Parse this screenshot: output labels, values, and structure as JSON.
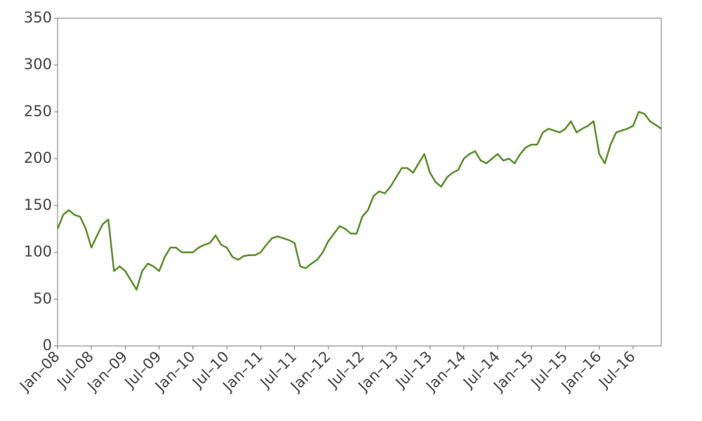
{
  "chart_data": {
    "type": "line",
    "x": [
      "2008-01",
      "2008-02",
      "2008-03",
      "2008-04",
      "2008-05",
      "2008-06",
      "2008-07",
      "2008-08",
      "2008-09",
      "2008-10",
      "2008-11",
      "2008-12",
      "2009-01",
      "2009-02",
      "2009-03",
      "2009-04",
      "2009-05",
      "2009-06",
      "2009-07",
      "2009-08",
      "2009-09",
      "2009-10",
      "2009-11",
      "2009-12",
      "2010-01",
      "2010-02",
      "2010-03",
      "2010-04",
      "2010-05",
      "2010-06",
      "2010-07",
      "2010-08",
      "2010-09",
      "2010-10",
      "2010-11",
      "2010-12",
      "2011-01",
      "2011-02",
      "2011-03",
      "2011-04",
      "2011-05",
      "2011-06",
      "2011-07",
      "2011-08",
      "2011-09",
      "2011-10",
      "2011-11",
      "2011-12",
      "2012-01",
      "2012-02",
      "2012-03",
      "2012-04",
      "2012-05",
      "2012-06",
      "2012-07",
      "2012-08",
      "2012-09",
      "2012-10",
      "2012-11",
      "2012-12",
      "2013-01",
      "2013-02",
      "2013-03",
      "2013-04",
      "2013-05",
      "2013-06",
      "2013-07",
      "2013-08",
      "2013-09",
      "2013-10",
      "2013-11",
      "2013-12",
      "2014-01",
      "2014-02",
      "2014-03",
      "2014-04",
      "2014-05",
      "2014-06",
      "2014-07",
      "2014-08",
      "2014-09",
      "2014-10",
      "2014-11",
      "2014-12",
      "2015-01",
      "2015-02",
      "2015-03",
      "2015-04",
      "2015-05",
      "2015-06",
      "2015-07",
      "2015-08",
      "2015-09",
      "2015-10",
      "2015-11",
      "2015-12",
      "2016-01",
      "2016-02",
      "2016-03",
      "2016-04",
      "2016-05",
      "2016-06",
      "2016-07",
      "2016-08",
      "2016-09",
      "2016-10",
      "2016-11",
      "2016-12"
    ],
    "series": [
      {
        "color": "#5a8f29",
        "values": [
          125,
          140,
          145,
          140,
          138,
          125,
          105,
          118,
          130,
          135,
          80,
          85,
          80,
          70,
          60,
          80,
          88,
          85,
          80,
          95,
          105,
          105,
          100,
          100,
          100,
          105,
          108,
          110,
          118,
          108,
          105,
          95,
          92,
          96,
          97,
          97,
          100,
          108,
          115,
          117,
          115,
          113,
          110,
          85,
          83,
          88,
          92,
          100,
          112,
          120,
          128,
          125,
          120,
          120,
          138,
          145,
          160,
          165,
          163,
          170,
          180,
          190,
          190,
          185,
          195,
          205,
          185,
          175,
          170,
          180,
          185,
          188,
          200,
          205,
          208,
          198,
          195,
          200,
          205,
          198,
          200,
          195,
          205,
          212,
          215,
          215,
          228,
          232,
          230,
          228,
          232,
          240,
          228,
          232,
          235,
          240,
          205,
          195,
          215,
          228,
          230,
          232,
          235,
          250,
          248,
          240,
          236,
          232
        ]
      }
    ],
    "xlim": [
      "2008-01",
      "2016-12"
    ],
    "xticks": [
      {
        "value": "2008-01",
        "label": "Jan–08"
      },
      {
        "value": "2008-07",
        "label": "Jul–08"
      },
      {
        "value": "2009-01",
        "label": "Jan–09"
      },
      {
        "value": "2009-07",
        "label": "Jul–09"
      },
      {
        "value": "2010-01",
        "label": "Jan–10"
      },
      {
        "value": "2010-07",
        "label": "Jul–10"
      },
      {
        "value": "2011-01",
        "label": "Jan–11"
      },
      {
        "value": "2011-07",
        "label": "Jul–11"
      },
      {
        "value": "2012-01",
        "label": "Jan–12"
      },
      {
        "value": "2012-07",
        "label": "Jul–12"
      },
      {
        "value": "2013-01",
        "label": "Jan–13"
      },
      {
        "value": "2013-07",
        "label": "Jul–13"
      },
      {
        "value": "2014-01",
        "label": "Jan–14"
      },
      {
        "value": "2014-07",
        "label": "Jul–14"
      },
      {
        "value": "2015-01",
        "label": "Jan–15"
      },
      {
        "value": "2015-07",
        "label": "Jul–15"
      },
      {
        "value": "2016-01",
        "label": "Jan–16"
      },
      {
        "value": "2016-07",
        "label": "Jul–16"
      }
    ],
    "ylim": [
      0,
      350
    ],
    "yticks": [
      0,
      50,
      100,
      150,
      200,
      250,
      300,
      350
    ]
  }
}
